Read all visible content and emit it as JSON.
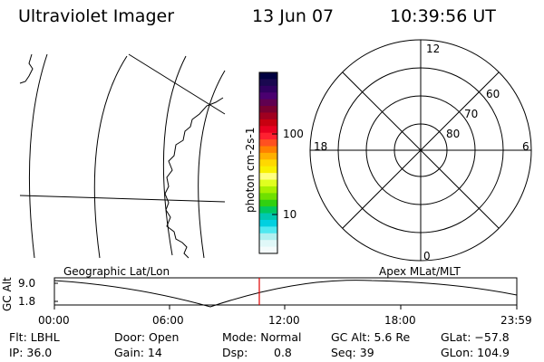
{
  "header": {
    "instrument": "Ultraviolet Imager",
    "date": "13 Jun 07",
    "time": "10:39:56 UT"
  },
  "colorbar": {
    "unit_label": "photon cm-2s-1",
    "ticks": [
      "100",
      "10"
    ],
    "colors": [
      "#000040",
      "#1a0850",
      "#300060",
      "#4a0070",
      "#600050",
      "#7a0030",
      "#a00020",
      "#c80010",
      "#e80020",
      "#ff2030",
      "#ff5020",
      "#ff8000",
      "#ffb000",
      "#ffd800",
      "#f8f000",
      "#ffff80",
      "#e0ff20",
      "#a8f000",
      "#70e000",
      "#30d010",
      "#00c860",
      "#00c8b0",
      "#00d0e0",
      "#50e8f0",
      "#b0f0f0",
      "#e0f8f8",
      "#f4fbfb"
    ]
  },
  "polar": {
    "mlt_labels": {
      "top": "12",
      "left": "18",
      "right": "6",
      "bottom": "0"
    },
    "lat_labels": [
      "60",
      "70",
      "80"
    ]
  },
  "panel_labels": {
    "geo": "Geographic Lat/Lon",
    "apex": "Apex MLat/MLT"
  },
  "gc_alt_plot": {
    "ylabel": "GC Alt",
    "yticks": [
      "9.0",
      "1.8"
    ],
    "xticks": [
      "00:00",
      "06:00",
      "12:00",
      "18:00",
      "23:59"
    ],
    "marker_color": "#e00000"
  },
  "status": {
    "row1": {
      "flt": "Flt: LBHL",
      "door": "Door: Open",
      "mode": "Mode: Normal",
      "gcalt": "GC Alt: 5.6 Re",
      "glat": "GLat: −57.8"
    },
    "row2": {
      "ip": "IP: 36.0",
      "gain": "Gain: 14",
      "dsp_label": "Dsp:",
      "dsp_value": "0.8",
      "seq": "Seq: 39",
      "glon": "GLon: 104.9"
    }
  }
}
